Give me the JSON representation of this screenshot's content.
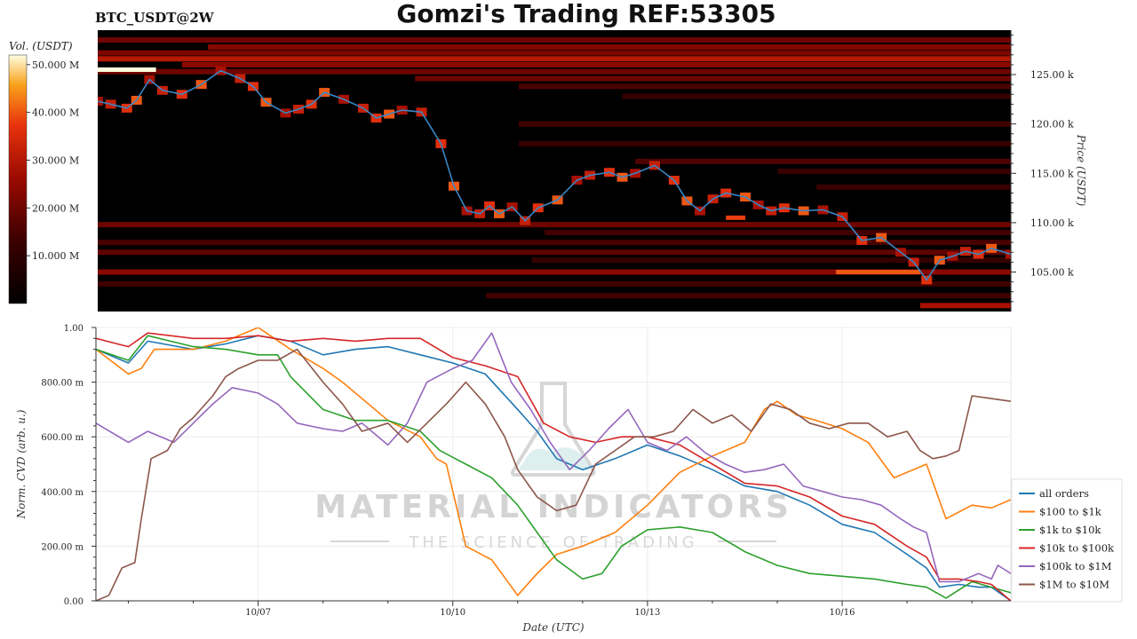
{
  "header": {
    "symbol": "BTC_USDT@2W",
    "title": "Gomzi's Trading REF:53305"
  },
  "watermark": {
    "main": "MATERIAL INDICATORS",
    "sub": "THE SCIENCE OF TRADING"
  },
  "colors": {
    "price_line": "#3b86c4",
    "heatmap_bg": "#000000",
    "series": [
      "#1f77b4",
      "#ff7f0e",
      "#2ca02c",
      "#d62728",
      "#9467bd",
      "#8c564b"
    ]
  },
  "chart_data": [
    {
      "type": "heatmap",
      "title": "BTC_USDT@2W",
      "ylabel": "Price (USDT)",
      "ylim": [
        101,
        129.5
      ],
      "y_ticks": [
        105,
        110,
        115,
        120,
        125
      ],
      "y_tick_labels": [
        "105.00 k",
        "110.00 k",
        "115.00 k",
        "120.00 k",
        "125.00 k"
      ],
      "colorbar": {
        "label": "Vol. (USDT)",
        "range": [
          0,
          52
        ],
        "ticks": [
          10,
          20,
          30,
          40,
          50
        ],
        "tick_labels": [
          "10.000 M",
          "20.000 M",
          "30.000 M",
          "40.000 M",
          "50.000 M"
        ]
      },
      "x_range_days": [
        4.5,
        18.6
      ],
      "price_line": {
        "t": [
          4.5,
          4.7,
          4.95,
          5.1,
          5.3,
          5.5,
          5.8,
          6.1,
          6.4,
          6.7,
          6.9,
          7.1,
          7.4,
          7.6,
          7.8,
          8.0,
          8.3,
          8.6,
          8.8,
          9.0,
          9.2,
          9.5,
          9.8,
          10.0,
          10.2,
          10.4,
          10.55,
          10.7,
          10.9,
          11.1,
          11.3,
          11.6,
          11.9,
          12.1,
          12.4,
          12.6,
          12.8,
          13.1,
          13.4,
          13.6,
          13.8,
          14.0,
          14.2,
          14.5,
          14.7,
          14.9,
          15.1,
          15.4,
          15.7,
          16.0,
          16.3,
          16.6,
          16.9,
          17.1,
          17.3,
          17.5,
          17.7,
          17.9,
          18.1,
          18.3,
          18.6
        ],
        "y": [
          122.3,
          122.0,
          121.6,
          122.4,
          124.5,
          123.4,
          123.0,
          124.0,
          125.4,
          124.6,
          123.8,
          122.2,
          121.1,
          121.5,
          122.0,
          123.2,
          122.5,
          121.6,
          120.6,
          121.0,
          121.4,
          121.2,
          118.0,
          113.7,
          111.2,
          110.9,
          111.7,
          110.9,
          111.6,
          110.2,
          111.5,
          112.3,
          114.3,
          114.8,
          115.1,
          114.6,
          115.0,
          115.8,
          114.3,
          112.2,
          111.2,
          112.4,
          113.0,
          112.6,
          111.8,
          111.2,
          111.5,
          111.2,
          111.3,
          110.6,
          108.2,
          108.5,
          107.0,
          106.0,
          104.2,
          106.2,
          106.6,
          107.1,
          106.8,
          107.4,
          106.8
        ]
      },
      "level_bands": [
        {
          "price": 128.5,
          "t0": 4.5,
          "t1": 18.6,
          "vol": 20
        },
        {
          "price": 127.8,
          "t0": 6.2,
          "t1": 18.6,
          "vol": 23
        },
        {
          "price": 127.2,
          "t0": 4.5,
          "t1": 18.6,
          "vol": 22
        },
        {
          "price": 126.6,
          "t0": 4.5,
          "t1": 18.6,
          "vol": 30
        },
        {
          "price": 126.0,
          "t0": 5.8,
          "t1": 18.6,
          "vol": 24
        },
        {
          "price": 125.3,
          "t0": 4.5,
          "t1": 18.6,
          "vol": 20
        },
        {
          "price": 124.6,
          "t0": 9.4,
          "t1": 18.6,
          "vol": 20
        },
        {
          "price": 123.8,
          "t0": 11.0,
          "t1": 18.6,
          "vol": 15
        },
        {
          "price": 122.8,
          "t0": 12.6,
          "t1": 18.6,
          "vol": 12
        },
        {
          "price": 120.0,
          "t0": 11.0,
          "t1": 18.6,
          "vol": 14
        },
        {
          "price": 118.0,
          "t0": 11.0,
          "t1": 18.6,
          "vol": 12
        },
        {
          "price": 116.2,
          "t0": 12.8,
          "t1": 18.6,
          "vol": 16
        },
        {
          "price": 115.2,
          "t0": 15.0,
          "t1": 18.6,
          "vol": 13
        },
        {
          "price": 113.6,
          "t0": 15.6,
          "t1": 18.6,
          "vol": 13
        },
        {
          "price": 109.8,
          "t0": 4.5,
          "t1": 18.6,
          "vol": 20
        },
        {
          "price": 109.0,
          "t0": 11.4,
          "t1": 18.6,
          "vol": 14
        },
        {
          "price": 108.0,
          "t0": 4.5,
          "t1": 18.6,
          "vol": 15
        },
        {
          "price": 107.0,
          "t0": 4.5,
          "t1": 18.6,
          "vol": 18
        },
        {
          "price": 106.2,
          "t0": 11.2,
          "t1": 18.6,
          "vol": 12
        },
        {
          "price": 105.0,
          "t0": 4.5,
          "t1": 18.6,
          "vol": 24
        },
        {
          "price": 103.8,
          "t0": 4.5,
          "t1": 18.6,
          "vol": 14
        },
        {
          "price": 102.6,
          "t0": 10.5,
          "t1": 18.6,
          "vol": 14
        },
        {
          "price": 101.6,
          "t0": 17.2,
          "t1": 18.6,
          "vol": 28
        }
      ],
      "hot_spots": [
        {
          "price": 125.5,
          "t0": 4.5,
          "t1": 5.4,
          "vol": 52
        },
        {
          "price": 105.0,
          "t0": 15.9,
          "t1": 17.2,
          "vol": 40
        },
        {
          "price": 110.5,
          "t0": 14.2,
          "t1": 14.5,
          "vol": 38
        }
      ]
    },
    {
      "type": "line",
      "xlabel": "Date (UTC)",
      "ylabel": "Norm. CVD (arb. u.)",
      "ylim": [
        0,
        1
      ],
      "y_ticks": [
        0,
        0.2,
        0.4,
        0.6,
        0.8,
        1.0
      ],
      "y_tick_labels": [
        "0.00",
        "200.00 m",
        "400.00 m",
        "600.00 m",
        "800.00 m",
        "1.00"
      ],
      "x_range_days": [
        4.5,
        18.6
      ],
      "x_ticks": [
        7,
        10,
        13,
        16
      ],
      "x_tick_labels": [
        "10/07",
        "10/10",
        "10/13",
        "10/16"
      ],
      "legend_position": "right",
      "series": [
        {
          "name": "all orders",
          "x": [
            4.5,
            5.0,
            5.3,
            6.0,
            6.5,
            7.0,
            7.5,
            8.0,
            8.5,
            9.0,
            9.5,
            10.0,
            10.5,
            11.0,
            11.3,
            11.6,
            12.0,
            12.5,
            13.0,
            13.5,
            14.0,
            14.5,
            15.0,
            15.5,
            16.0,
            16.5,
            17.0,
            17.3,
            17.5,
            17.8,
            18.1,
            18.3,
            18.6
          ],
          "values": [
            0.92,
            0.87,
            0.95,
            0.92,
            0.94,
            0.97,
            0.95,
            0.9,
            0.92,
            0.93,
            0.9,
            0.87,
            0.83,
            0.7,
            0.62,
            0.52,
            0.48,
            0.52,
            0.57,
            0.53,
            0.48,
            0.42,
            0.4,
            0.35,
            0.28,
            0.25,
            0.17,
            0.12,
            0.05,
            0.06,
            0.05,
            0.05,
            0.0
          ]
        },
        {
          "name": "$100 to $1k",
          "x": [
            4.5,
            5.0,
            5.2,
            5.4,
            6.0,
            6.5,
            7.0,
            7.5,
            8.0,
            8.3,
            8.7,
            9.0,
            9.5,
            9.75,
            9.9,
            10.2,
            10.6,
            11.0,
            11.3,
            11.6,
            12.0,
            12.5,
            13.0,
            13.5,
            14.0,
            14.5,
            14.8,
            15.0,
            15.3,
            15.6,
            16.0,
            16.4,
            16.8,
            17.0,
            17.3,
            17.6,
            18.0,
            18.3,
            18.6
          ],
          "values": [
            0.92,
            0.83,
            0.85,
            0.92,
            0.92,
            0.95,
            1.0,
            0.92,
            0.85,
            0.8,
            0.72,
            0.66,
            0.6,
            0.52,
            0.5,
            0.2,
            0.15,
            0.02,
            0.1,
            0.17,
            0.2,
            0.25,
            0.35,
            0.47,
            0.53,
            0.58,
            0.7,
            0.73,
            0.68,
            0.66,
            0.63,
            0.58,
            0.45,
            0.47,
            0.5,
            0.3,
            0.35,
            0.34,
            0.37
          ]
        },
        {
          "name": "$1k to $10k",
          "x": [
            4.5,
            5.0,
            5.3,
            6.0,
            6.5,
            7.0,
            7.3,
            7.5,
            8.0,
            8.5,
            9.0,
            9.5,
            9.8,
            10.2,
            10.6,
            11.0,
            11.3,
            11.6,
            12.0,
            12.3,
            12.6,
            13.0,
            13.5,
            14.0,
            14.5,
            15.0,
            15.5,
            16.0,
            16.5,
            17.0,
            17.3,
            17.6,
            18.0,
            18.3,
            18.6
          ],
          "values": [
            0.92,
            0.88,
            0.97,
            0.93,
            0.92,
            0.9,
            0.9,
            0.82,
            0.7,
            0.66,
            0.66,
            0.62,
            0.55,
            0.5,
            0.45,
            0.35,
            0.25,
            0.15,
            0.08,
            0.1,
            0.2,
            0.26,
            0.27,
            0.25,
            0.18,
            0.13,
            0.1,
            0.09,
            0.08,
            0.06,
            0.05,
            0.01,
            0.07,
            0.05,
            0.03
          ]
        },
        {
          "name": "$10k to $100k",
          "x": [
            4.5,
            5.0,
            5.3,
            6.0,
            6.5,
            7.0,
            7.5,
            8.0,
            8.5,
            9.0,
            9.5,
            10.0,
            10.5,
            11.0,
            11.4,
            11.8,
            12.2,
            12.6,
            13.0,
            13.5,
            14.0,
            14.5,
            15.0,
            15.5,
            16.0,
            16.5,
            17.0,
            17.3,
            17.5,
            17.8,
            18.1,
            18.3,
            18.6
          ],
          "values": [
            0.96,
            0.93,
            0.98,
            0.96,
            0.96,
            0.97,
            0.95,
            0.96,
            0.95,
            0.96,
            0.96,
            0.89,
            0.86,
            0.82,
            0.65,
            0.6,
            0.58,
            0.6,
            0.6,
            0.57,
            0.5,
            0.43,
            0.42,
            0.38,
            0.31,
            0.28,
            0.2,
            0.16,
            0.08,
            0.08,
            0.07,
            0.06,
            0.0
          ]
        },
        {
          "name": "$100k to $1M",
          "x": [
            4.5,
            5.0,
            5.3,
            5.7,
            6.0,
            6.3,
            6.6,
            7.0,
            7.3,
            7.6,
            8.0,
            8.3,
            8.6,
            9.0,
            9.3,
            9.6,
            10.0,
            10.3,
            10.6,
            10.9,
            11.2,
            11.5,
            11.8,
            12.1,
            12.4,
            12.7,
            13.0,
            13.3,
            13.6,
            13.9,
            14.2,
            14.5,
            14.8,
            15.1,
            15.4,
            15.7,
            16.0,
            16.3,
            16.6,
            16.9,
            17.1,
            17.3,
            17.5,
            17.8,
            18.1,
            18.3,
            18.4,
            18.6
          ],
          "values": [
            0.65,
            0.58,
            0.62,
            0.58,
            0.65,
            0.72,
            0.78,
            0.76,
            0.72,
            0.65,
            0.63,
            0.62,
            0.65,
            0.57,
            0.65,
            0.8,
            0.85,
            0.88,
            0.98,
            0.8,
            0.7,
            0.58,
            0.48,
            0.55,
            0.63,
            0.7,
            0.58,
            0.55,
            0.6,
            0.54,
            0.5,
            0.47,
            0.48,
            0.5,
            0.42,
            0.4,
            0.38,
            0.37,
            0.35,
            0.3,
            0.27,
            0.25,
            0.07,
            0.07,
            0.1,
            0.08,
            0.13,
            0.1
          ]
        },
        {
          "name": "$1M to $10M",
          "x": [
            4.5,
            4.7,
            4.9,
            5.1,
            5.2,
            5.35,
            5.6,
            5.8,
            6.0,
            6.3,
            6.5,
            6.7,
            7.0,
            7.3,
            7.6,
            8.0,
            8.3,
            8.6,
            9.0,
            9.3,
            9.6,
            9.9,
            10.2,
            10.5,
            10.8,
            11.0,
            11.3,
            11.6,
            11.9,
            12.2,
            12.5,
            12.8,
            13.1,
            13.4,
            13.7,
            14.0,
            14.3,
            14.6,
            14.9,
            15.2,
            15.5,
            15.8,
            16.1,
            16.4,
            16.7,
            17.0,
            17.2,
            17.4,
            17.6,
            17.8,
            18.0,
            18.3,
            18.6
          ],
          "values": [
            0.0,
            0.02,
            0.12,
            0.14,
            0.3,
            0.52,
            0.55,
            0.63,
            0.67,
            0.75,
            0.82,
            0.85,
            0.88,
            0.88,
            0.92,
            0.8,
            0.72,
            0.62,
            0.65,
            0.58,
            0.65,
            0.72,
            0.8,
            0.72,
            0.6,
            0.48,
            0.38,
            0.33,
            0.35,
            0.5,
            0.55,
            0.6,
            0.6,
            0.62,
            0.7,
            0.65,
            0.68,
            0.62,
            0.72,
            0.7,
            0.65,
            0.63,
            0.65,
            0.65,
            0.6,
            0.62,
            0.55,
            0.52,
            0.53,
            0.55,
            0.75,
            0.74,
            0.73
          ]
        }
      ]
    }
  ]
}
